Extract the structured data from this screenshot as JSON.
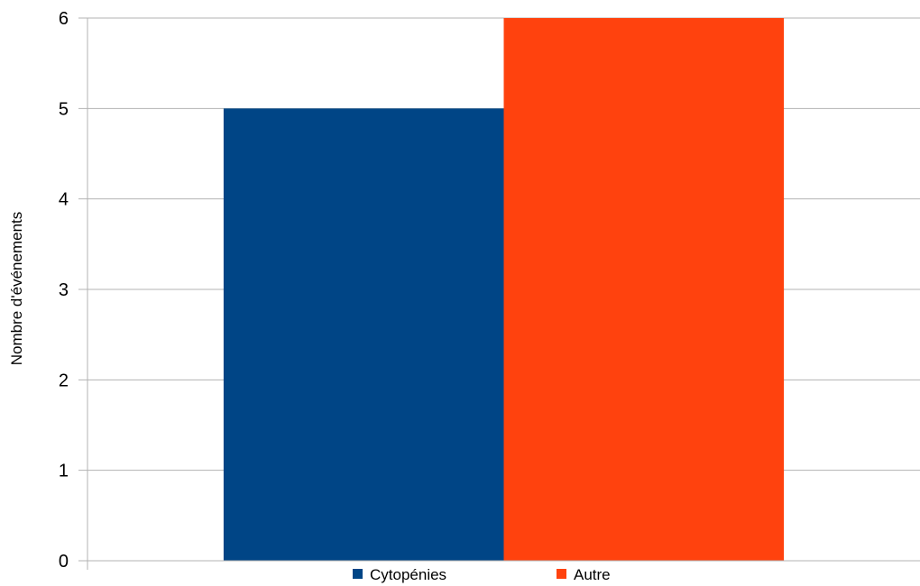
{
  "chart_data": {
    "type": "bar",
    "title": "",
    "xlabel": "",
    "ylabel": "Nombre d'événements",
    "ylim": [
      0,
      6
    ],
    "yticks": [
      "0",
      "1",
      "2",
      "3",
      "4",
      "5",
      "6"
    ],
    "grid": true,
    "legend_position": "bottom",
    "categories": [
      ""
    ],
    "series": [
      {
        "name": "Cytopénies",
        "values": [
          5
        ],
        "color": "#004586"
      },
      {
        "name": "Autre",
        "values": [
          6
        ],
        "color": "#ff420e"
      }
    ]
  }
}
